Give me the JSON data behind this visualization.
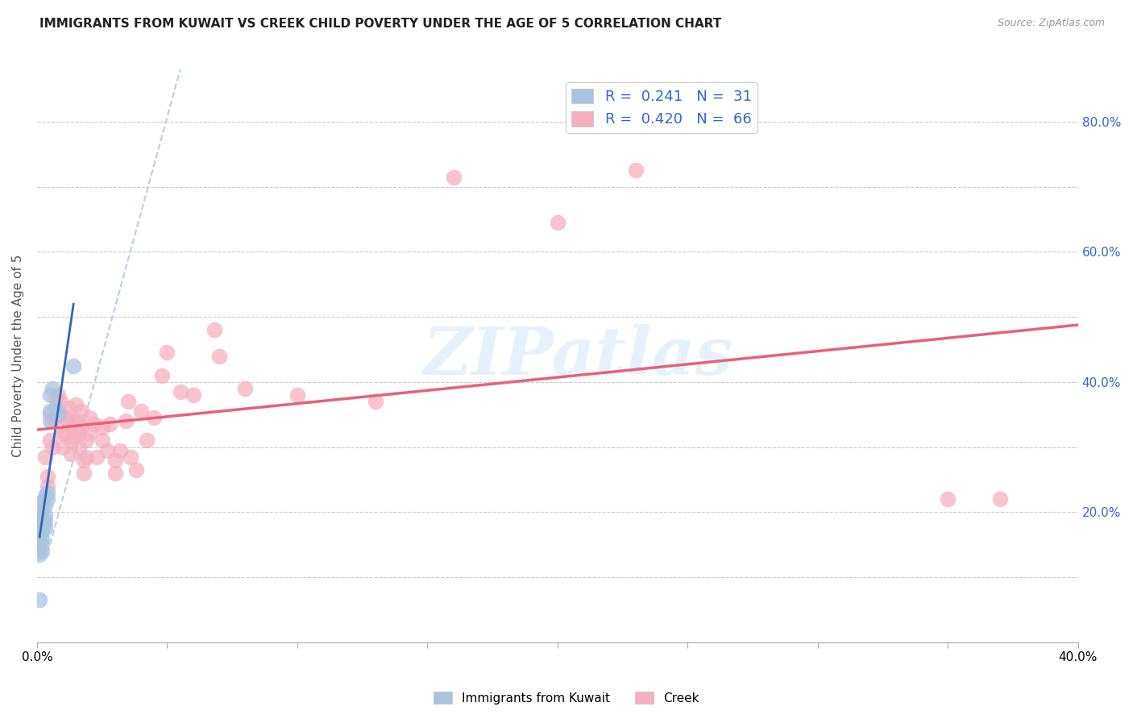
{
  "title": "IMMIGRANTS FROM KUWAIT VS CREEK CHILD POVERTY UNDER THE AGE OF 5 CORRELATION CHART",
  "source": "Source: ZipAtlas.com",
  "ylabel": "Child Poverty Under the Age of 5",
  "xlim": [
    0.0,
    0.4
  ],
  "ylim": [
    0.0,
    0.88
  ],
  "kuwait_color": "#aac4e0",
  "kuwait_edge": "#7aaad0",
  "creek_color": "#f5b0c0",
  "creek_edge": "#e888a0",
  "kuwait_line_color": "#3366bb",
  "creek_line_color": "#e8607a",
  "kuwait_R": 0.241,
  "kuwait_N": 31,
  "creek_R": 0.42,
  "creek_N": 66,
  "watermark": "ZIPatlas",
  "kuwait_scatter": [
    [
      0.001,
      0.205
    ],
    [
      0.001,
      0.195
    ],
    [
      0.001,
      0.185
    ],
    [
      0.001,
      0.175
    ],
    [
      0.001,
      0.165
    ],
    [
      0.001,
      0.155
    ],
    [
      0.001,
      0.145
    ],
    [
      0.001,
      0.135
    ],
    [
      0.002,
      0.215
    ],
    [
      0.002,
      0.2
    ],
    [
      0.002,
      0.19
    ],
    [
      0.002,
      0.18
    ],
    [
      0.002,
      0.17
    ],
    [
      0.002,
      0.16
    ],
    [
      0.002,
      0.15
    ],
    [
      0.002,
      0.14
    ],
    [
      0.003,
      0.225
    ],
    [
      0.003,
      0.21
    ],
    [
      0.003,
      0.195
    ],
    [
      0.003,
      0.185
    ],
    [
      0.003,
      0.175
    ],
    [
      0.004,
      0.23
    ],
    [
      0.004,
      0.22
    ],
    [
      0.005,
      0.38
    ],
    [
      0.005,
      0.355
    ],
    [
      0.005,
      0.34
    ],
    [
      0.006,
      0.39
    ],
    [
      0.007,
      0.36
    ],
    [
      0.008,
      0.35
    ],
    [
      0.014,
      0.425
    ],
    [
      0.001,
      0.065
    ]
  ],
  "creek_scatter": [
    [
      0.002,
      0.215
    ],
    [
      0.003,
      0.285
    ],
    [
      0.004,
      0.255
    ],
    [
      0.004,
      0.24
    ],
    [
      0.005,
      0.35
    ],
    [
      0.005,
      0.31
    ],
    [
      0.006,
      0.34
    ],
    [
      0.006,
      0.3
    ],
    [
      0.007,
      0.375
    ],
    [
      0.007,
      0.345
    ],
    [
      0.008,
      0.38
    ],
    [
      0.008,
      0.355
    ],
    [
      0.009,
      0.37
    ],
    [
      0.009,
      0.35
    ],
    [
      0.01,
      0.32
    ],
    [
      0.01,
      0.3
    ],
    [
      0.011,
      0.345
    ],
    [
      0.011,
      0.32
    ],
    [
      0.012,
      0.36
    ],
    [
      0.012,
      0.335
    ],
    [
      0.013,
      0.31
    ],
    [
      0.013,
      0.29
    ],
    [
      0.014,
      0.34
    ],
    [
      0.014,
      0.315
    ],
    [
      0.015,
      0.365
    ],
    [
      0.015,
      0.34
    ],
    [
      0.016,
      0.32
    ],
    [
      0.016,
      0.3
    ],
    [
      0.017,
      0.355
    ],
    [
      0.017,
      0.33
    ],
    [
      0.018,
      0.28
    ],
    [
      0.018,
      0.26
    ],
    [
      0.019,
      0.31
    ],
    [
      0.019,
      0.285
    ],
    [
      0.02,
      0.345
    ],
    [
      0.02,
      0.32
    ],
    [
      0.022,
      0.335
    ],
    [
      0.023,
      0.285
    ],
    [
      0.025,
      0.33
    ],
    [
      0.025,
      0.31
    ],
    [
      0.027,
      0.295
    ],
    [
      0.028,
      0.335
    ],
    [
      0.03,
      0.28
    ],
    [
      0.03,
      0.26
    ],
    [
      0.032,
      0.295
    ],
    [
      0.034,
      0.34
    ],
    [
      0.035,
      0.37
    ],
    [
      0.036,
      0.285
    ],
    [
      0.038,
      0.265
    ],
    [
      0.04,
      0.355
    ],
    [
      0.042,
      0.31
    ],
    [
      0.045,
      0.345
    ],
    [
      0.048,
      0.41
    ],
    [
      0.05,
      0.445
    ],
    [
      0.055,
      0.385
    ],
    [
      0.06,
      0.38
    ],
    [
      0.068,
      0.48
    ],
    [
      0.07,
      0.44
    ],
    [
      0.08,
      0.39
    ],
    [
      0.1,
      0.38
    ],
    [
      0.13,
      0.37
    ],
    [
      0.16,
      0.715
    ],
    [
      0.2,
      0.645
    ],
    [
      0.23,
      0.725
    ],
    [
      0.35,
      0.22
    ],
    [
      0.37,
      0.22
    ]
  ]
}
